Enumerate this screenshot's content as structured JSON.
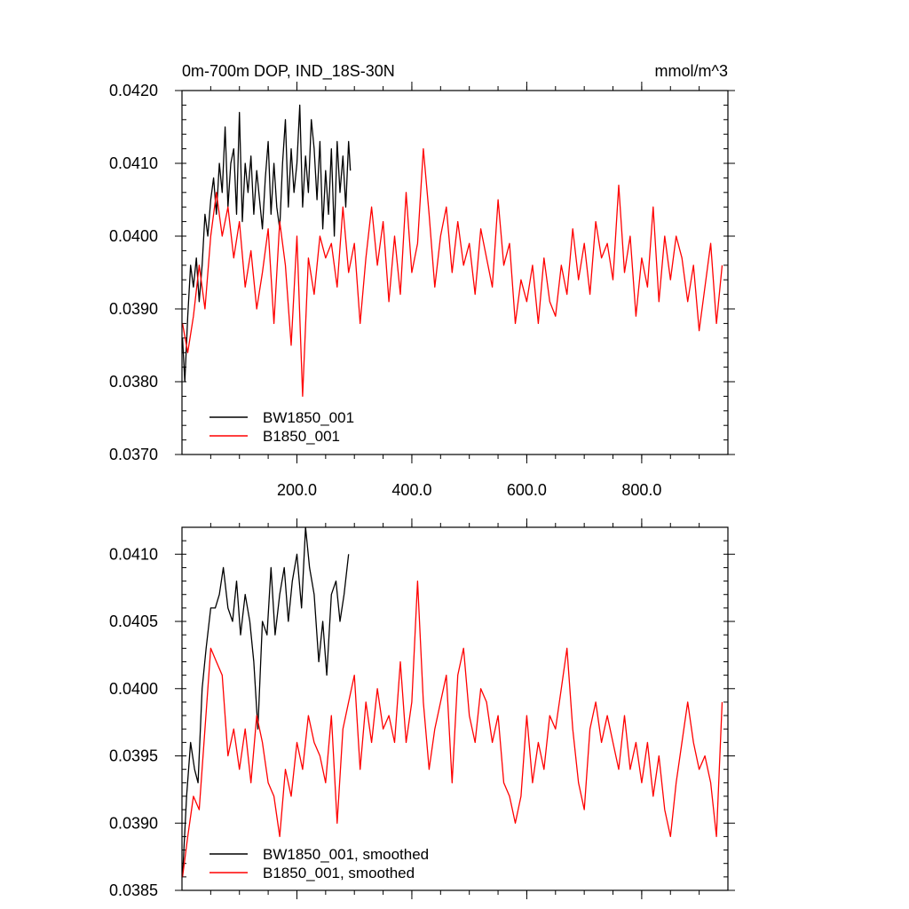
{
  "chart_data": [
    {
      "type": "line",
      "title": "0m-700m DOP, IND_18S-30N",
      "units": "mmol/m^3",
      "xlim": [
        0,
        950
      ],
      "ylim": [
        0.037,
        0.042
      ],
      "xticks": [
        200,
        400,
        600,
        800
      ],
      "xtick_labels": [
        "200.0",
        "400.0",
        "600.0",
        "800.0"
      ],
      "yticks": [
        0.037,
        0.038,
        0.039,
        0.04,
        0.041,
        0.042
      ],
      "ytick_labels": [
        "0.0370",
        "0.0380",
        "0.0390",
        "0.0400",
        "0.0410",
        "0.0420"
      ],
      "legend": "lower-left",
      "series": [
        {
          "name": "BW1850_001",
          "color": "#000000",
          "x": [
            1,
            5,
            10,
            15,
            20,
            25,
            30,
            35,
            40,
            45,
            50,
            55,
            60,
            65,
            70,
            75,
            80,
            85,
            90,
            95,
            100,
            105,
            110,
            115,
            120,
            125,
            130,
            135,
            140,
            145,
            150,
            155,
            160,
            165,
            170,
            175,
            180,
            185,
            190,
            195,
            200,
            205,
            210,
            215,
            220,
            225,
            230,
            235,
            240,
            245,
            250,
            255,
            260,
            265,
            270,
            275,
            280,
            285,
            290,
            293
          ],
          "values": [
            0.0386,
            0.038,
            0.0389,
            0.0396,
            0.0393,
            0.0397,
            0.0391,
            0.0396,
            0.0403,
            0.04,
            0.0405,
            0.0408,
            0.0403,
            0.041,
            0.0406,
            0.0415,
            0.0404,
            0.041,
            0.0412,
            0.0403,
            0.0417,
            0.0402,
            0.041,
            0.0406,
            0.0411,
            0.0403,
            0.0409,
            0.0405,
            0.0401,
            0.0408,
            0.0413,
            0.0403,
            0.041,
            0.0404,
            0.0401,
            0.041,
            0.0416,
            0.0404,
            0.0412,
            0.0406,
            0.041,
            0.0418,
            0.0404,
            0.0411,
            0.0406,
            0.0416,
            0.0412,
            0.0405,
            0.0413,
            0.0401,
            0.0409,
            0.0403,
            0.0412,
            0.04,
            0.0413,
            0.0406,
            0.0411,
            0.0404,
            0.0413,
            0.0409
          ]
        },
        {
          "name": "B1850_001",
          "color": "#ff0000",
          "x": [
            1,
            10,
            20,
            30,
            40,
            50,
            60,
            70,
            80,
            90,
            100,
            110,
            120,
            130,
            140,
            150,
            160,
            170,
            180,
            190,
            200,
            210,
            220,
            230,
            240,
            250,
            260,
            270,
            280,
            290,
            300,
            310,
            320,
            330,
            340,
            350,
            360,
            370,
            380,
            390,
            400,
            410,
            420,
            430,
            440,
            450,
            460,
            470,
            480,
            490,
            500,
            510,
            520,
            530,
            540,
            550,
            560,
            570,
            580,
            590,
            600,
            610,
            620,
            630,
            640,
            650,
            660,
            670,
            680,
            690,
            700,
            710,
            720,
            730,
            740,
            750,
            760,
            770,
            780,
            790,
            800,
            810,
            820,
            830,
            840,
            850,
            860,
            870,
            880,
            890,
            900,
            910,
            920,
            930,
            940
          ],
          "values": [
            0.0388,
            0.0384,
            0.0389,
            0.0396,
            0.039,
            0.04,
            0.0406,
            0.04,
            0.0404,
            0.0397,
            0.0402,
            0.0393,
            0.0398,
            0.039,
            0.0395,
            0.0401,
            0.0388,
            0.0402,
            0.0396,
            0.0385,
            0.04,
            0.0378,
            0.0397,
            0.0392,
            0.04,
            0.0397,
            0.0399,
            0.0393,
            0.0404,
            0.0395,
            0.0399,
            0.0388,
            0.0397,
            0.0404,
            0.0396,
            0.0402,
            0.0391,
            0.04,
            0.0392,
            0.0406,
            0.0395,
            0.0399,
            0.0412,
            0.0403,
            0.0393,
            0.04,
            0.0404,
            0.0395,
            0.0402,
            0.0396,
            0.0399,
            0.0392,
            0.0401,
            0.0397,
            0.0393,
            0.0405,
            0.0396,
            0.0399,
            0.0388,
            0.0394,
            0.0391,
            0.0396,
            0.0388,
            0.0397,
            0.0391,
            0.0389,
            0.0396,
            0.0392,
            0.0401,
            0.0394,
            0.0399,
            0.0392,
            0.0402,
            0.0397,
            0.0399,
            0.0394,
            0.0407,
            0.0395,
            0.04,
            0.0389,
            0.0397,
            0.0393,
            0.0404,
            0.0391,
            0.04,
            0.0394,
            0.04,
            0.0397,
            0.0391,
            0.0396,
            0.0387,
            0.0393,
            0.0399,
            0.0388,
            0.0396
          ]
        }
      ]
    },
    {
      "type": "line",
      "xlim": [
        0,
        950
      ],
      "ylim": [
        0.0385,
        0.0412
      ],
      "xticks": [
        200,
        400,
        600,
        800
      ],
      "yticks": [
        0.0385,
        0.039,
        0.0395,
        0.04,
        0.0405,
        0.041
      ],
      "ytick_labels": [
        "0.0385",
        "0.0390",
        "0.0395",
        "0.0400",
        "0.0405",
        "0.0410"
      ],
      "legend": "lower-left",
      "series": [
        {
          "name": "BW1850_001, smoothed",
          "color": "#000000",
          "x": [
            1,
            8,
            15,
            22,
            28,
            35,
            42,
            50,
            58,
            65,
            72,
            80,
            88,
            95,
            102,
            110,
            118,
            125,
            132,
            140,
            148,
            155,
            162,
            170,
            178,
            185,
            192,
            200,
            208,
            215,
            222,
            230,
            238,
            245,
            252,
            260,
            268,
            275,
            282,
            290
          ],
          "values": [
            0.0386,
            0.0392,
            0.0396,
            0.0394,
            0.0393,
            0.04,
            0.0403,
            0.0406,
            0.0406,
            0.0407,
            0.0409,
            0.0406,
            0.0405,
            0.0408,
            0.0404,
            0.0407,
            0.0405,
            0.0402,
            0.0397,
            0.0405,
            0.0404,
            0.0409,
            0.0404,
            0.0407,
            0.0409,
            0.0405,
            0.0408,
            0.041,
            0.0406,
            0.0412,
            0.0409,
            0.0407,
            0.0402,
            0.0405,
            0.0401,
            0.0407,
            0.0408,
            0.0405,
            0.0407,
            0.041
          ]
        },
        {
          "name": "B1850_001, smoothed",
          "color": "#ff0000",
          "x": [
            1,
            10,
            20,
            30,
            40,
            50,
            60,
            70,
            80,
            90,
            100,
            110,
            120,
            130,
            140,
            150,
            160,
            170,
            180,
            190,
            200,
            210,
            220,
            230,
            240,
            250,
            260,
            270,
            280,
            290,
            300,
            310,
            320,
            330,
            340,
            350,
            360,
            370,
            380,
            390,
            400,
            410,
            420,
            430,
            440,
            450,
            460,
            470,
            480,
            490,
            500,
            510,
            520,
            530,
            540,
            550,
            560,
            570,
            580,
            590,
            600,
            610,
            620,
            630,
            640,
            650,
            660,
            670,
            680,
            690,
            700,
            710,
            720,
            730,
            740,
            750,
            760,
            770,
            780,
            790,
            800,
            810,
            820,
            830,
            840,
            850,
            860,
            870,
            880,
            890,
            900,
            910,
            920,
            930,
            940
          ],
          "values": [
            0.0386,
            0.0389,
            0.0392,
            0.0391,
            0.0397,
            0.0403,
            0.0402,
            0.0401,
            0.0395,
            0.0397,
            0.0394,
            0.0397,
            0.0393,
            0.0398,
            0.0396,
            0.0393,
            0.0392,
            0.0389,
            0.0394,
            0.0392,
            0.0396,
            0.0394,
            0.0398,
            0.0396,
            0.0395,
            0.0393,
            0.0398,
            0.039,
            0.0397,
            0.0399,
            0.0401,
            0.0394,
            0.0399,
            0.0396,
            0.04,
            0.0397,
            0.0398,
            0.0396,
            0.0402,
            0.0396,
            0.0399,
            0.0408,
            0.0399,
            0.0394,
            0.0397,
            0.0399,
            0.0401,
            0.0393,
            0.0401,
            0.0403,
            0.0398,
            0.0396,
            0.04,
            0.0399,
            0.0396,
            0.0398,
            0.0393,
            0.0392,
            0.039,
            0.0392,
            0.0398,
            0.0393,
            0.0396,
            0.0394,
            0.0398,
            0.0397,
            0.04,
            0.0403,
            0.0397,
            0.0393,
            0.0391,
            0.0397,
            0.0399,
            0.0396,
            0.0398,
            0.0396,
            0.0394,
            0.0398,
            0.0394,
            0.0396,
            0.0393,
            0.0396,
            0.0392,
            0.0395,
            0.0391,
            0.0389,
            0.0393,
            0.0396,
            0.0399,
            0.0396,
            0.0394,
            0.0395,
            0.0393,
            0.0389,
            0.0399
          ]
        }
      ]
    }
  ]
}
